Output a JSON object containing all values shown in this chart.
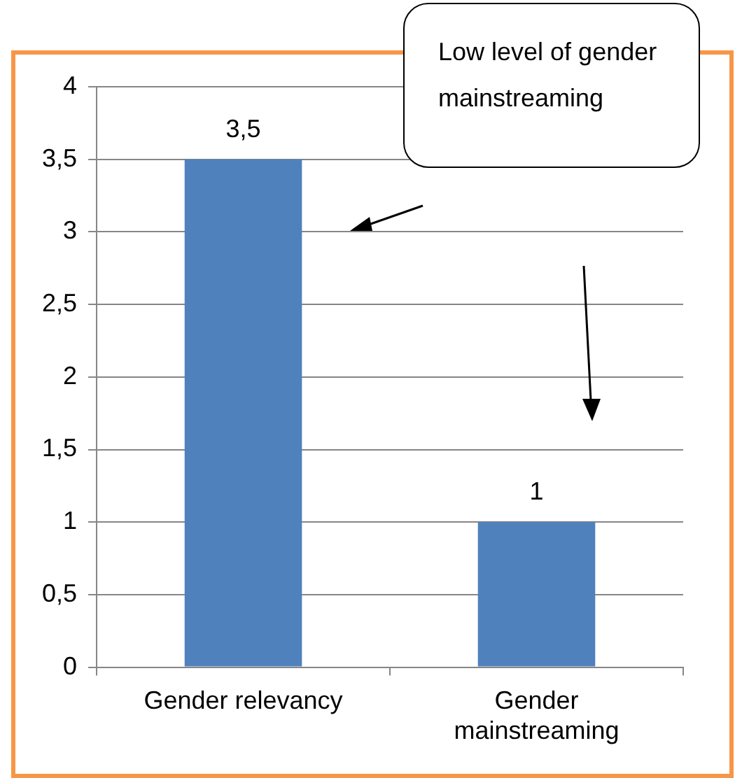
{
  "chart_data": {
    "type": "bar",
    "categories": [
      "Gender relevancy",
      "Gender mainstreaming"
    ],
    "values": [
      3.5,
      1
    ],
    "value_labels": [
      "3,5",
      "1"
    ],
    "color": "#4f81bd",
    "ylim": [
      0,
      4
    ],
    "yticks": [
      0,
      {
        "value": 0.5,
        "label": "0,5"
      },
      1,
      {
        "value": 1.5,
        "label": "1,5"
      },
      2,
      {
        "value": 2.5,
        "label": "2,5"
      },
      3,
      {
        "value": 3.5,
        "label": "3,5"
      },
      4
    ],
    "grid": "y",
    "legend": false,
    "annotations": [
      "Low level of gender mainstreaming"
    ]
  }
}
